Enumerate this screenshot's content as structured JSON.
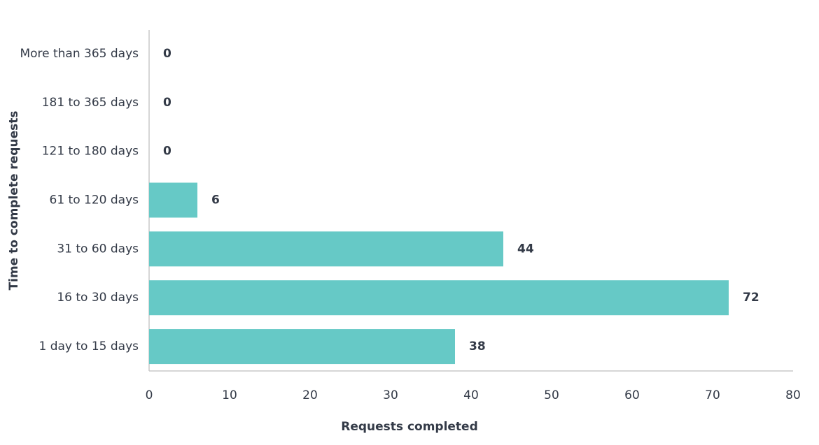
{
  "chart_data": {
    "type": "bar",
    "orientation": "horizontal",
    "xlabel": "Requests completed",
    "ylabel": "Time to complete requests",
    "categories": [
      "More than 365 days",
      "181 to 365 days",
      "121 to 180 days",
      "61 to 120 days",
      "31 to 60 days",
      "16 to 30 days",
      "1 day to 15 days"
    ],
    "values": [
      0,
      0,
      0,
      6,
      44,
      72,
      38
    ],
    "color": "#66c9c6",
    "xlim": [
      0,
      80
    ],
    "xticks": [
      0,
      10,
      20,
      30,
      40,
      50,
      60,
      70,
      80
    ],
    "grid": false
  }
}
